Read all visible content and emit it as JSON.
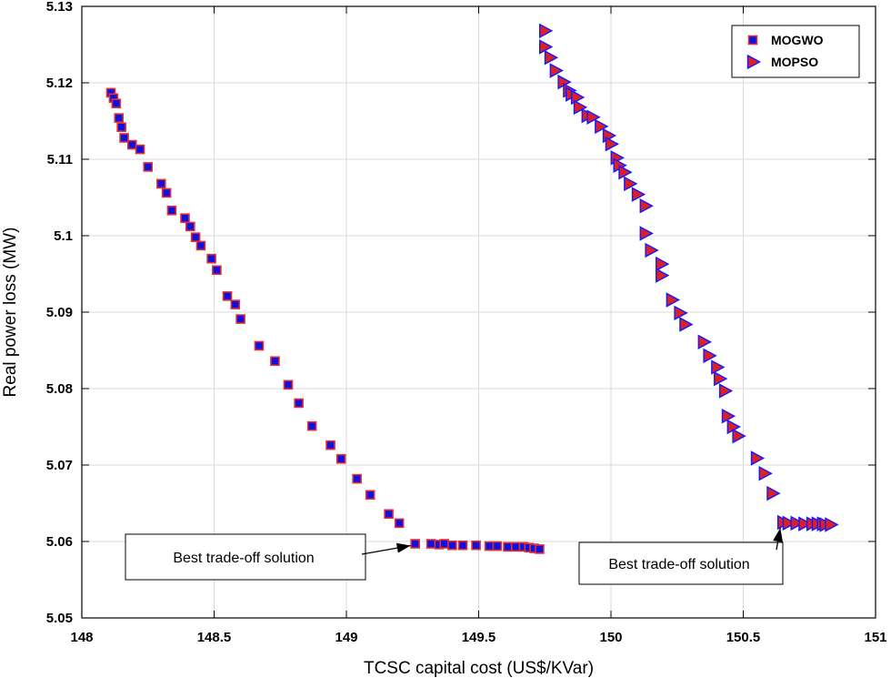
{
  "chart_data": {
    "type": "scatter",
    "xlabel": "TCSC capital  cost (US$/KVar)",
    "ylabel": "Real power loss (MW)",
    "xlim": [
      148,
      151
    ],
    "ylim": [
      5.05,
      5.13
    ],
    "xticks": [
      "148",
      "148.5",
      "149",
      "149.5",
      "150",
      "150.5",
      "151"
    ],
    "yticks": [
      "5.05",
      "5.06",
      "5.07",
      "5.08",
      "5.09",
      "5.1",
      "5.11",
      "5.12",
      "5.13"
    ],
    "grid": true,
    "legend_position": "top-right",
    "series": [
      {
        "name": "MOGWO",
        "marker": "square",
        "fill_color": "#1010e0",
        "edge_color": "#e03030",
        "points": [
          [
            148.11,
            5.1187
          ],
          [
            148.12,
            5.118
          ],
          [
            148.13,
            5.1173
          ],
          [
            148.14,
            5.1154
          ],
          [
            148.15,
            5.1142
          ],
          [
            148.16,
            5.1128
          ],
          [
            148.19,
            5.1119
          ],
          [
            148.22,
            5.1113
          ],
          [
            148.25,
            5.109
          ],
          [
            148.3,
            5.1068
          ],
          [
            148.32,
            5.1056
          ],
          [
            148.34,
            5.1033
          ],
          [
            148.39,
            5.1023
          ],
          [
            148.41,
            5.1012
          ],
          [
            148.43,
            5.0998
          ],
          [
            148.45,
            5.0987
          ],
          [
            148.49,
            5.097
          ],
          [
            148.51,
            5.0955
          ],
          [
            148.55,
            5.0921
          ],
          [
            148.58,
            5.091
          ],
          [
            148.6,
            5.0891
          ],
          [
            148.67,
            5.0856
          ],
          [
            148.73,
            5.0836
          ],
          [
            148.78,
            5.0805
          ],
          [
            148.82,
            5.0781
          ],
          [
            148.87,
            5.0751
          ],
          [
            148.94,
            5.0726
          ],
          [
            148.98,
            5.0708
          ],
          [
            149.04,
            5.0682
          ],
          [
            149.09,
            5.0661
          ],
          [
            149.16,
            5.0636
          ],
          [
            149.2,
            5.0624
          ],
          [
            149.26,
            5.0597
          ],
          [
            149.32,
            5.0597
          ],
          [
            149.35,
            5.0596
          ],
          [
            149.37,
            5.0597
          ],
          [
            149.4,
            5.0595
          ],
          [
            149.44,
            5.0595
          ],
          [
            149.49,
            5.0595
          ],
          [
            149.54,
            5.0594
          ],
          [
            149.57,
            5.0594
          ],
          [
            149.61,
            5.0593
          ],
          [
            149.64,
            5.0593
          ],
          [
            149.67,
            5.0593
          ],
          [
            149.69,
            5.0592
          ],
          [
            149.71,
            5.0591
          ],
          [
            149.73,
            5.059
          ]
        ]
      },
      {
        "name": "MOPSO",
        "marker": "triangle-right",
        "fill_color": "#e02020",
        "edge_color": "#1a1aff",
        "points": [
          [
            149.75,
            5.1268
          ],
          [
            149.75,
            5.1247
          ],
          [
            149.77,
            5.1233
          ],
          [
            149.79,
            5.1216
          ],
          [
            149.82,
            5.1201
          ],
          [
            149.84,
            5.119
          ],
          [
            149.85,
            5.1185
          ],
          [
            149.87,
            5.1181
          ],
          [
            149.88,
            5.1168
          ],
          [
            149.91,
            5.1157
          ],
          [
            149.93,
            5.1155
          ],
          [
            149.96,
            5.1143
          ],
          [
            149.99,
            5.1131
          ],
          [
            150.0,
            5.112
          ],
          [
            150.02,
            5.1102
          ],
          [
            150.03,
            5.1092
          ],
          [
            150.05,
            5.1083
          ],
          [
            150.07,
            5.1068
          ],
          [
            150.1,
            5.1054
          ],
          [
            150.13,
            5.1039
          ],
          [
            150.13,
            5.1003
          ],
          [
            150.15,
            5.0981
          ],
          [
            150.19,
            5.0963
          ],
          [
            150.19,
            5.0948
          ],
          [
            150.23,
            5.0916
          ],
          [
            150.26,
            5.0899
          ],
          [
            150.28,
            5.0884
          ],
          [
            150.35,
            5.0861
          ],
          [
            150.37,
            5.0843
          ],
          [
            150.4,
            5.0828
          ],
          [
            150.41,
            5.0813
          ],
          [
            150.43,
            5.0797
          ],
          [
            150.44,
            5.0764
          ],
          [
            150.46,
            5.075
          ],
          [
            150.48,
            5.0738
          ],
          [
            150.55,
            5.0709
          ],
          [
            150.58,
            5.0689
          ],
          [
            150.61,
            5.0663
          ],
          [
            150.65,
            5.0625
          ],
          [
            150.67,
            5.0624
          ],
          [
            150.7,
            5.0624
          ],
          [
            150.73,
            5.0623
          ],
          [
            150.76,
            5.0623
          ],
          [
            150.78,
            5.0623
          ],
          [
            150.8,
            5.0623
          ],
          [
            150.81,
            5.0622
          ],
          [
            150.83,
            5.0622
          ]
        ]
      }
    ],
    "annotations": [
      {
        "text": "Best trade-off solution",
        "target": [
          149.26,
          5.0597
        ]
      },
      {
        "text": "Best trade-off solution",
        "target": [
          150.64,
          5.0626
        ]
      }
    ]
  }
}
